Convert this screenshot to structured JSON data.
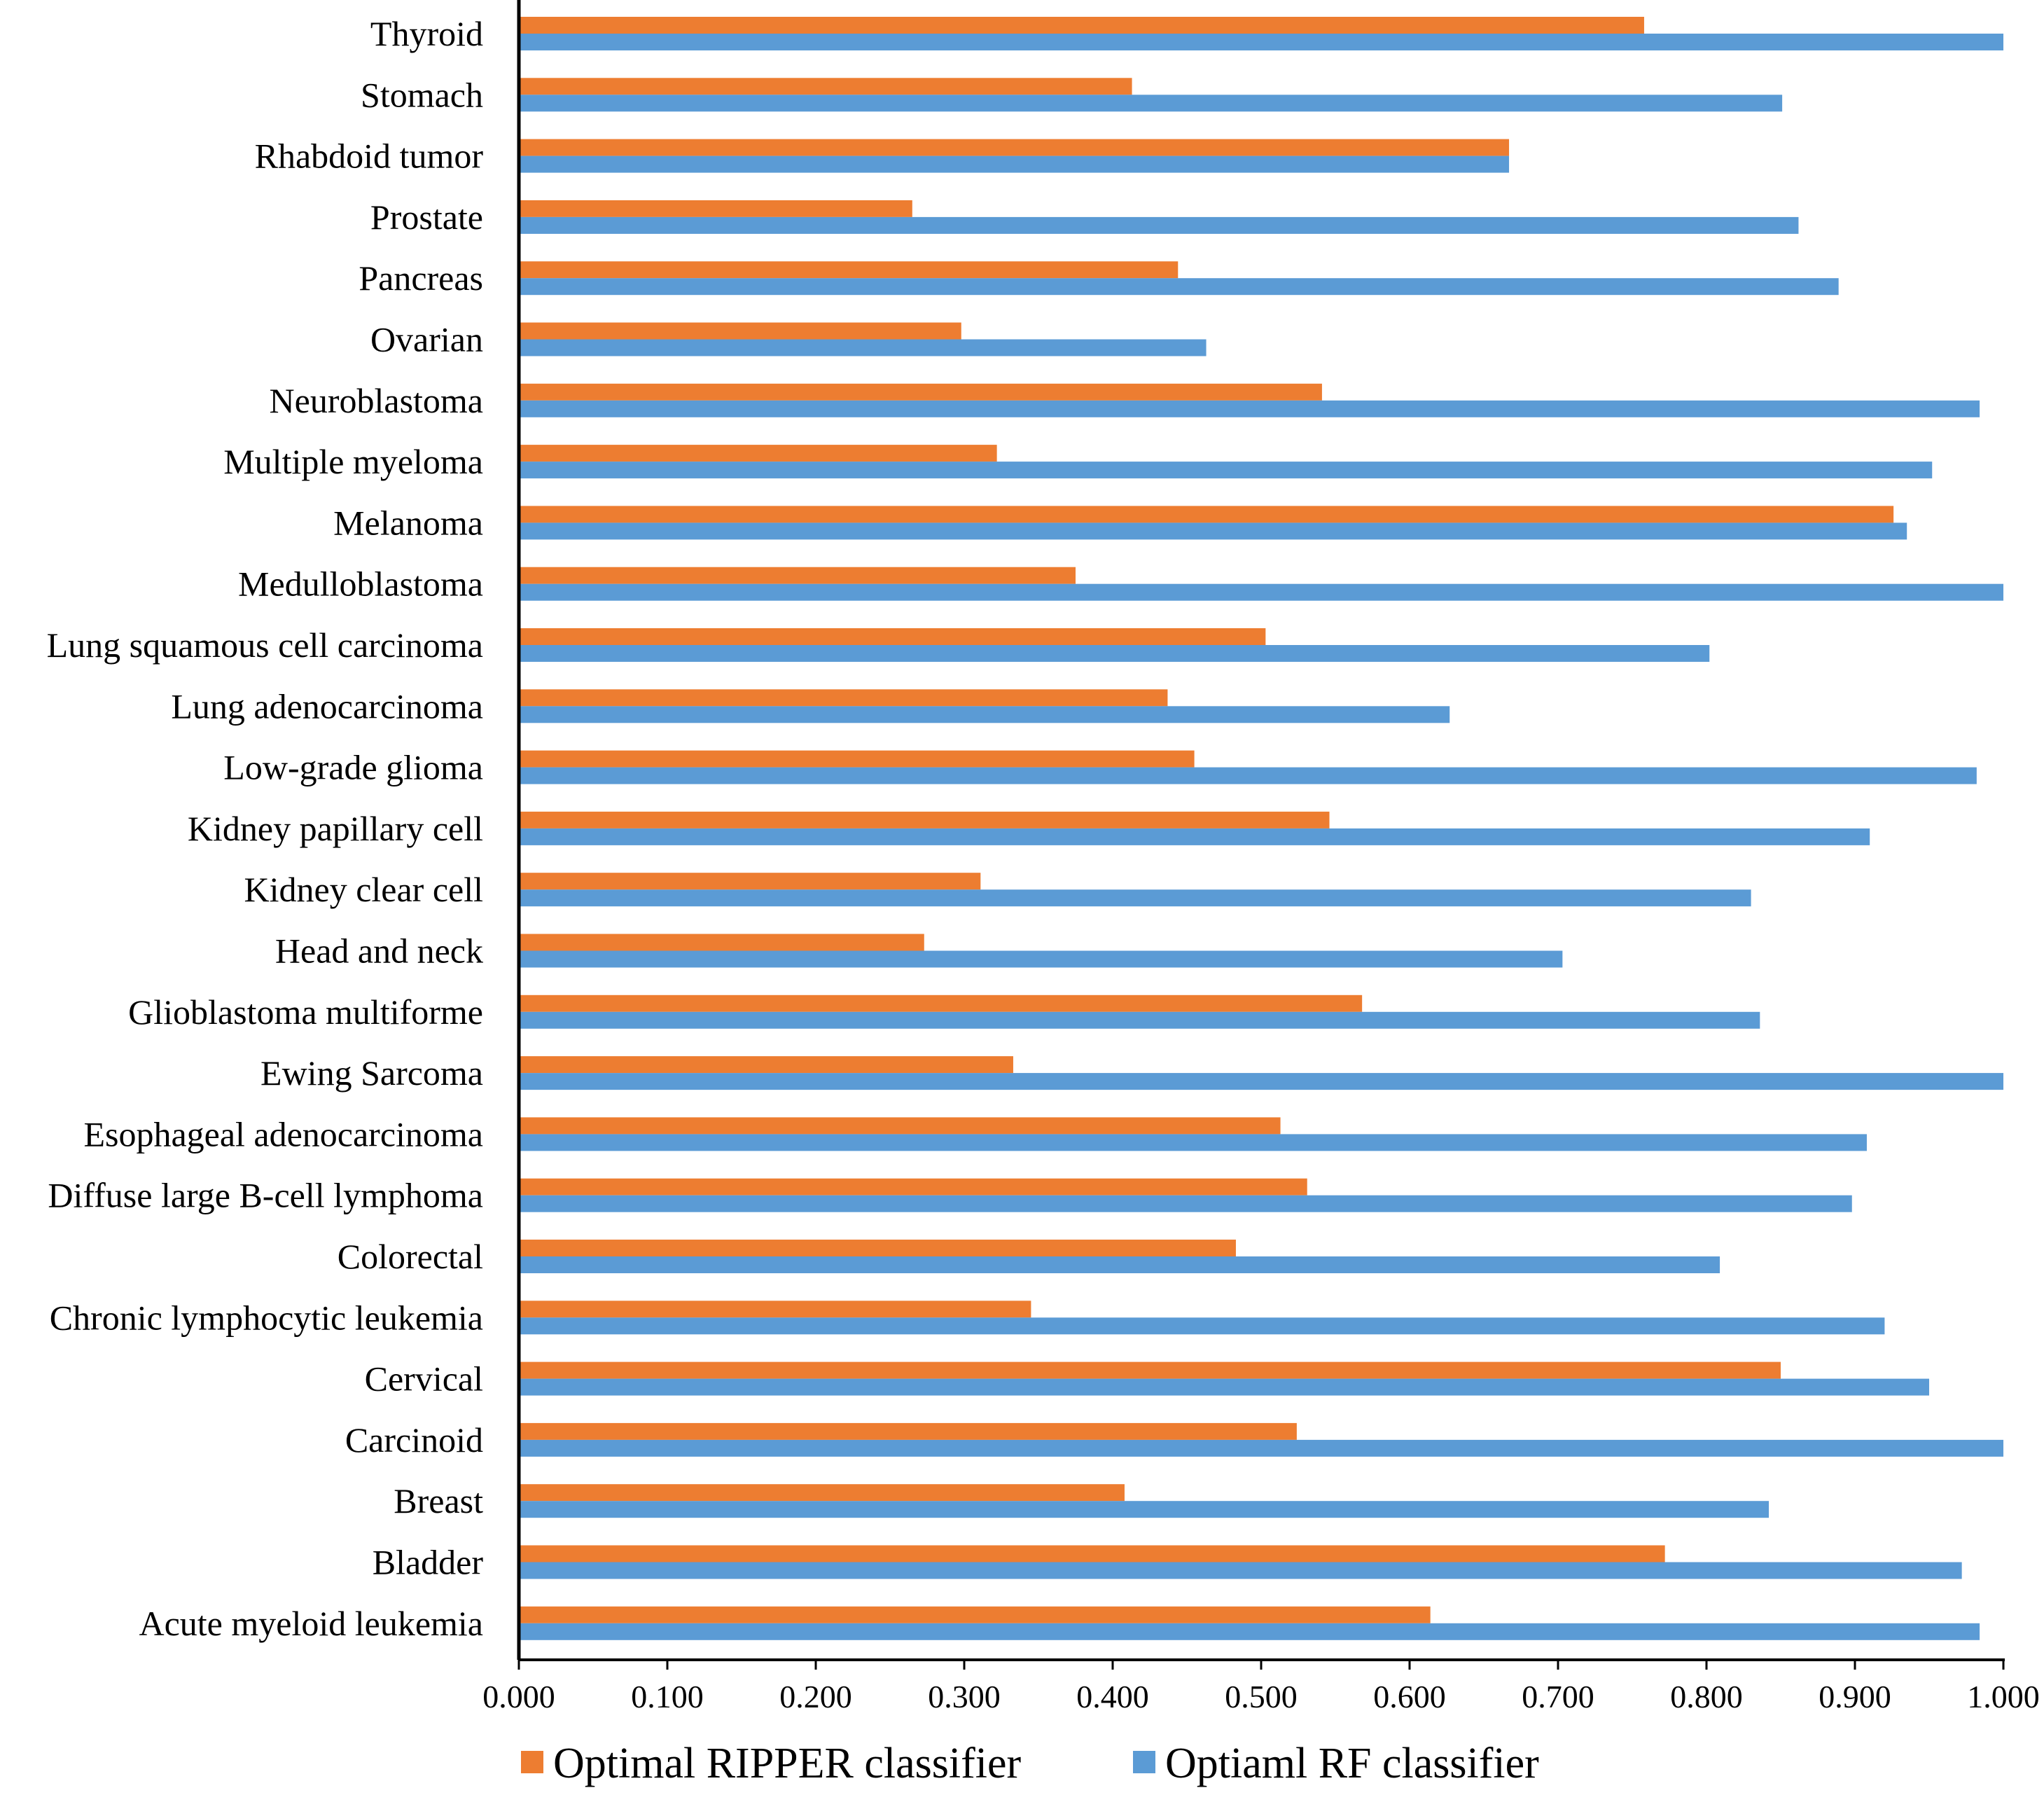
{
  "chart_data": {
    "type": "bar",
    "orientation": "horizontal",
    "title": "",
    "xlabel": "",
    "ylabel": "",
    "xlim": [
      0.0,
      1.0
    ],
    "grid": false,
    "legend_position": "bottom",
    "categories": [
      "Thyroid",
      "Stomach",
      "Rhabdoid tumor",
      "Prostate",
      "Pancreas",
      "Ovarian",
      "Neuroblastoma",
      "Multiple myeloma",
      "Melanoma",
      "Medulloblastoma",
      "Lung squamous cell carcinoma",
      "Lung adenocarcinoma",
      "Low-grade glioma",
      "Kidney papillary cell",
      "Kidney clear cell",
      "Head and neck",
      "Glioblastoma multiforme",
      "Ewing Sarcoma",
      "Esophageal adenocarcinoma",
      "Diffuse large B-cell lymphoma",
      "Colorectal",
      "Chronic lymphocytic leukemia",
      "Cervical",
      "Carcinoid",
      "Breast",
      "Bladder",
      "Acute myeloid leukemia"
    ],
    "series": [
      {
        "name": "Optimal RIPPER classifier",
        "color": "#ED7D31",
        "values": [
          0.758,
          0.413,
          0.667,
          0.265,
          0.444,
          0.298,
          0.541,
          0.322,
          0.926,
          0.375,
          0.503,
          0.437,
          0.455,
          0.546,
          0.311,
          0.273,
          0.568,
          0.333,
          0.513,
          0.531,
          0.483,
          0.345,
          0.85,
          0.524,
          0.408,
          0.772,
          0.614
        ]
      },
      {
        "name": "Optiaml RF classifier",
        "color": "#5B9BD5",
        "values": [
          1.0,
          0.851,
          0.667,
          0.862,
          0.889,
          0.463,
          0.984,
          0.952,
          0.935,
          1.0,
          0.802,
          0.627,
          0.982,
          0.91,
          0.83,
          0.703,
          0.836,
          1.0,
          0.908,
          0.898,
          0.809,
          0.92,
          0.95,
          1.0,
          0.842,
          0.972,
          0.984
        ]
      }
    ],
    "xticks": [
      "0.000",
      "0.100",
      "0.200",
      "0.300",
      "0.400",
      "0.500",
      "0.600",
      "0.700",
      "0.800",
      "0.900",
      "1.000"
    ]
  }
}
